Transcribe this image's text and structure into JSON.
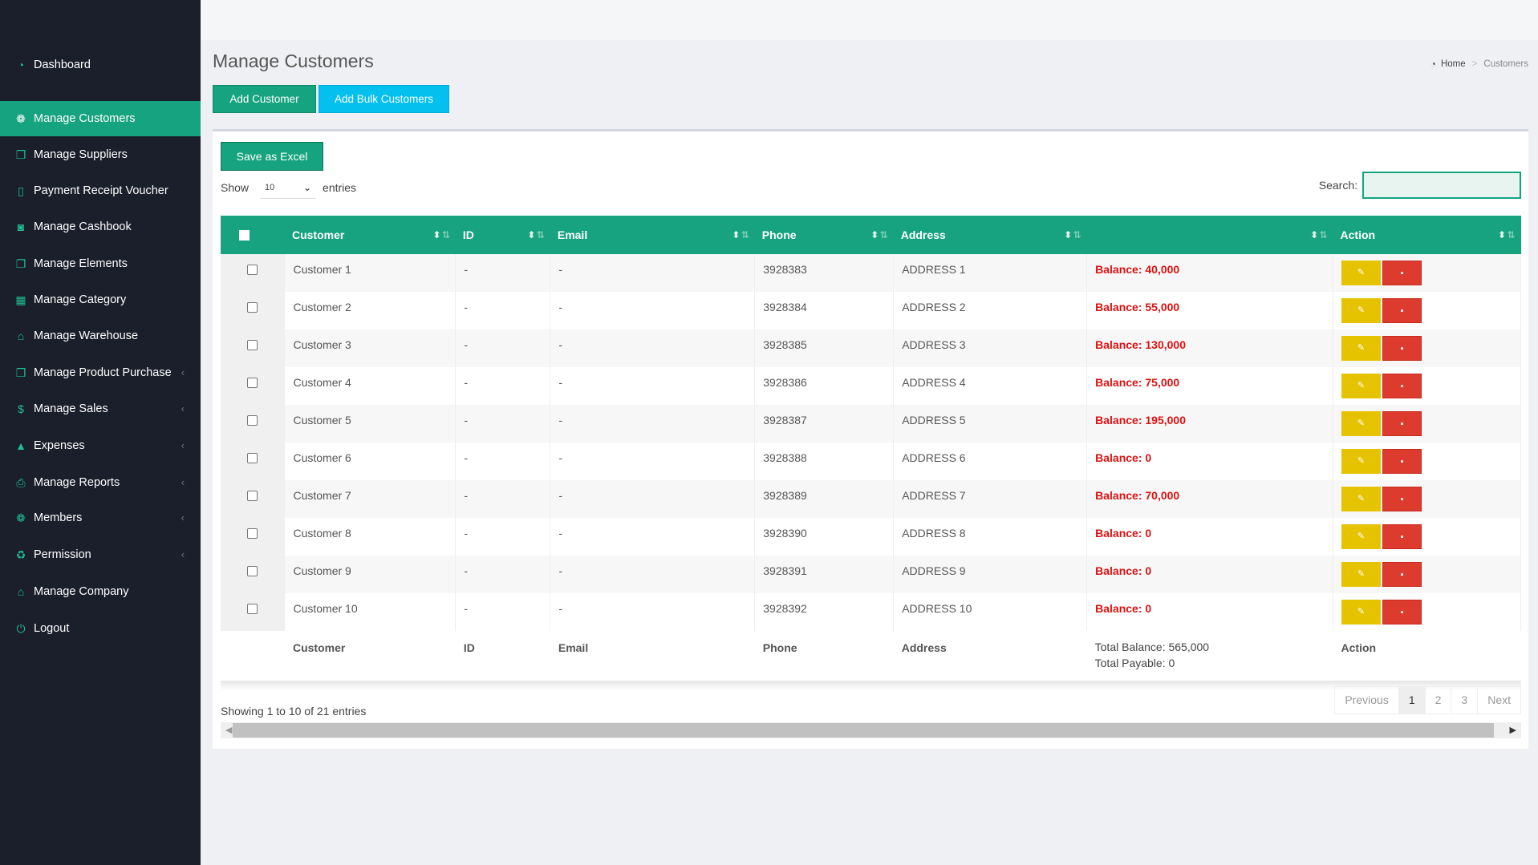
{
  "sidebar": {
    "items": [
      {
        "label": "Dashboard",
        "icon": "dashboard-icon",
        "glyph": "◔",
        "chevron": false
      },
      {
        "label": "Manage Customers",
        "icon": "users-icon",
        "glyph": "❁",
        "chevron": false,
        "active": true
      },
      {
        "label": "Manage Suppliers",
        "icon": "cube-icon",
        "glyph": "❒",
        "chevron": false
      },
      {
        "label": "Payment Receipt Voucher",
        "icon": "file-icon",
        "glyph": "▯",
        "chevron": false
      },
      {
        "label": "Manage Cashbook",
        "icon": "money-icon",
        "glyph": "◙",
        "chevron": false
      },
      {
        "label": "Manage Elements",
        "icon": "clone-icon",
        "glyph": "❐",
        "chevron": false
      },
      {
        "label": "Manage Category",
        "icon": "grid-icon",
        "glyph": "▦",
        "chevron": false
      },
      {
        "label": "Manage Warehouse",
        "icon": "bank-icon",
        "glyph": "⌂",
        "chevron": false
      },
      {
        "label": "Manage Product Purchase",
        "icon": "cube-icon",
        "glyph": "❒",
        "chevron": true
      },
      {
        "label": "Manage Sales",
        "icon": "dollar-icon",
        "glyph": "$",
        "chevron": true
      },
      {
        "label": "Expenses",
        "icon": "arrow-up-icon",
        "glyph": "▲",
        "chevron": true
      },
      {
        "label": "Manage Reports",
        "icon": "print-icon",
        "glyph": "⎙",
        "chevron": true
      },
      {
        "label": "Members",
        "icon": "users-icon",
        "glyph": "❁",
        "chevron": true
      },
      {
        "label": "Permission",
        "icon": "recycle-icon",
        "glyph": "♻",
        "chevron": true
      },
      {
        "label": "Manage Company",
        "icon": "home-icon",
        "glyph": "⌂",
        "chevron": false
      },
      {
        "label": "Logout",
        "icon": "power-icon",
        "glyph": "⏻",
        "chevron": false
      }
    ]
  },
  "header": {
    "title": "Manage Customers",
    "breadcrumb": {
      "home": "Home",
      "current": "Customers"
    },
    "add_label": "Add Customer",
    "bulk_label": "Add Bulk Customers"
  },
  "table_controls": {
    "excel_label": "Save as Excel",
    "show_label": "Show",
    "entries_value": "10",
    "entries_label": "entries",
    "search_label": "Search:"
  },
  "table": {
    "columns": [
      "Customer",
      "ID",
      "Email",
      "Phone",
      "Address",
      "",
      "Action"
    ],
    "rows": [
      {
        "customer": "Customer 1",
        "id": "-",
        "email": "-",
        "phone": "3928383",
        "address": "ADDRESS 1",
        "balance": "Balance: 40,000"
      },
      {
        "customer": "Customer 2",
        "id": "-",
        "email": "-",
        "phone": "3928384",
        "address": "ADDRESS 2",
        "balance": "Balance: 55,000"
      },
      {
        "customer": "Customer 3",
        "id": "-",
        "email": "-",
        "phone": "3928385",
        "address": "ADDRESS 3",
        "balance": "Balance: 130,000"
      },
      {
        "customer": "Customer 4",
        "id": "-",
        "email": "-",
        "phone": "3928386",
        "address": "ADDRESS 4",
        "balance": "Balance: 75,000"
      },
      {
        "customer": "Customer 5",
        "id": "-",
        "email": "-",
        "phone": "3928387",
        "address": "ADDRESS 5",
        "balance": "Balance: 195,000"
      },
      {
        "customer": "Customer 6",
        "id": "-",
        "email": "-",
        "phone": "3928388",
        "address": "ADDRESS 6",
        "balance": "Balance: 0"
      },
      {
        "customer": "Customer 7",
        "id": "-",
        "email": "-",
        "phone": "3928389",
        "address": "ADDRESS 7",
        "balance": "Balance: 70,000"
      },
      {
        "customer": "Customer 8",
        "id": "-",
        "email": "-",
        "phone": "3928390",
        "address": "ADDRESS 8",
        "balance": "Balance: 0"
      },
      {
        "customer": "Customer 9",
        "id": "-",
        "email": "-",
        "phone": "3928391",
        "address": "ADDRESS 9",
        "balance": "Balance: 0"
      },
      {
        "customer": "Customer 10",
        "id": "-",
        "email": "-",
        "phone": "3928392",
        "address": "ADDRESS 10",
        "balance": "Balance: 0"
      }
    ],
    "footer": {
      "customer": "Customer",
      "id": "ID",
      "email": "Email",
      "phone": "Phone",
      "address": "Address",
      "total_balance": "Total Balance: 565,000",
      "total_payable": "Total Payable: 0",
      "action": "Action"
    }
  },
  "pagination": {
    "info": "Showing 1 to 10 of 21 entries",
    "previous": "Previous",
    "pages": [
      "1",
      "2",
      "3"
    ],
    "current": "1",
    "next": "Next"
  },
  "colors": {
    "accent": "#16a380",
    "info": "#03c0ef",
    "sidebar": "#1b1e2b",
    "balance": "#dd1111",
    "edit": "#e6c300",
    "delete": "#dd3b2e"
  }
}
